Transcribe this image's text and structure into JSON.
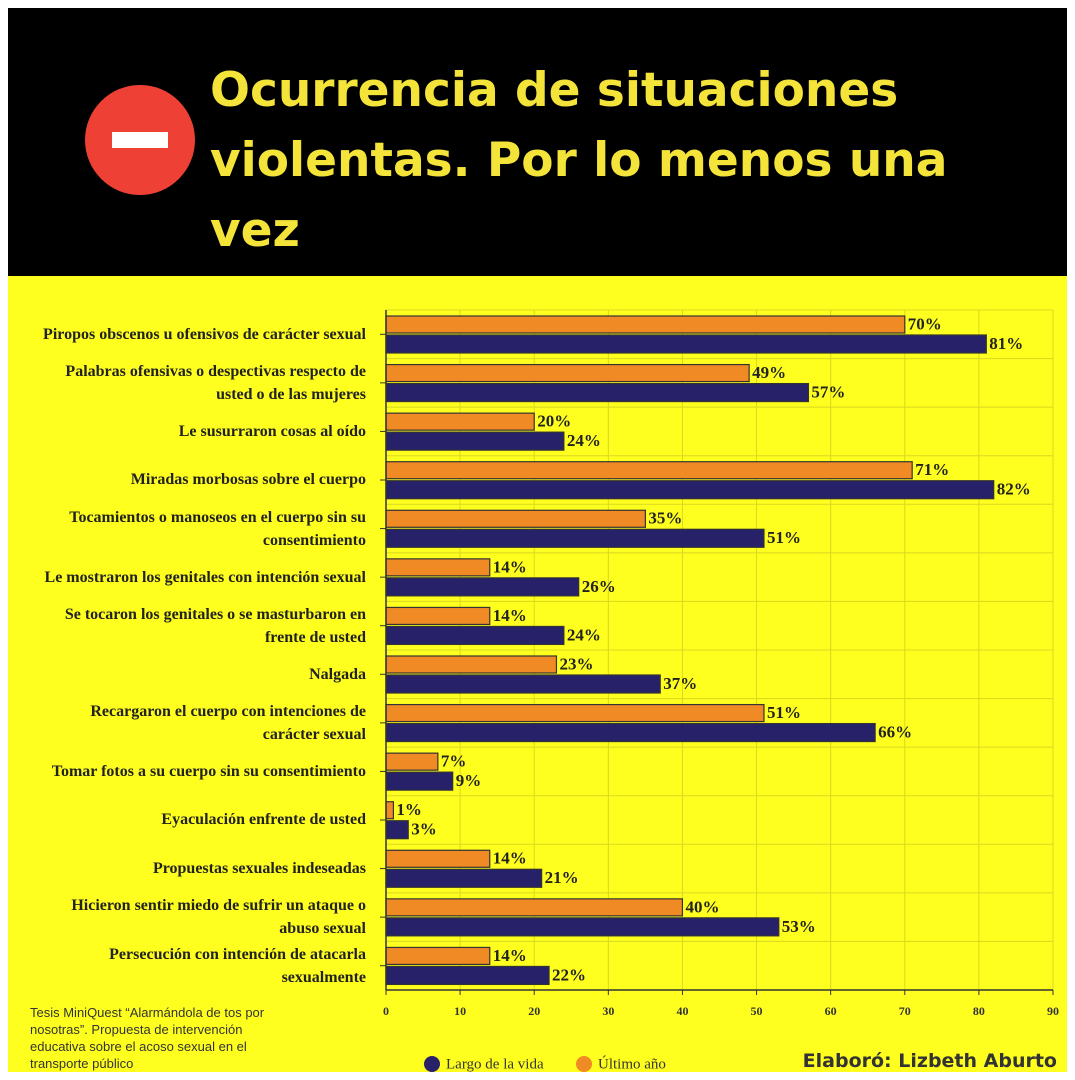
{
  "chart_data": {
    "type": "bar",
    "orientation": "horizontal",
    "title": "Ocurrencia de situaciones violentas. Por lo menos una vez",
    "categories": [
      "Piropos obscenos u ofensivos de carácter sexual",
      "Palabras ofensivas o despectivas respecto de usted o de las mujeres",
      "Le susurraron cosas al oído",
      "Miradas morbosas sobre el cuerpo",
      "Tocamientos o manoseos en el cuerpo sin su consentimiento",
      "Le mostraron los genitales con intención sexual",
      "Se tocaron los genitales o se masturbaron en frente de usted",
      "Nalgada",
      "Recargaron el cuerpo con intenciones de carácter sexual",
      "Tomar fotos a su cuerpo sin su consentimiento",
      "Eyaculación enfrente de usted",
      "Propuestas sexuales indeseadas",
      "Hicieron sentir miedo de sufrir un ataque o abuso sexual",
      "Persecución con intención de atacarla sexualmente"
    ],
    "series": [
      {
        "name": "Largo de la vida",
        "color": "#27216a",
        "values": [
          81,
          57,
          24,
          82,
          51,
          26,
          24,
          37,
          66,
          9,
          3,
          21,
          53,
          22
        ],
        "value_labels": [
          "81%",
          "57%",
          "24%",
          "82%",
          "51%",
          "26%",
          "24%",
          "37%",
          "66%",
          "9%",
          "3%",
          "21%",
          "53%",
          "22%"
        ]
      },
      {
        "name": "Último año",
        "color": "#f08a24",
        "values": [
          70,
          49,
          20,
          71,
          35,
          14,
          14,
          23,
          51,
          7,
          1,
          14,
          40,
          14
        ],
        "value_labels": [
          "70%",
          "49%",
          "20%",
          "71%",
          "35%",
          "14%",
          "14%",
          "23%",
          "51%",
          "7%",
          "1%",
          "14%",
          "40%",
          "14%"
        ]
      }
    ],
    "xlim": [
      0,
      90
    ],
    "xticks": [
      0,
      10,
      20,
      30,
      40,
      50,
      60,
      70,
      80,
      90
    ],
    "grid": true,
    "legend": "bottom",
    "source": "Tesis MiniQuest “Alarmándola de tos por nosotras”. Propuesta de intervención educativa sobre el acoso sexual en el transporte público",
    "credit": "Elaboró: Lizbeth Aburto"
  }
}
